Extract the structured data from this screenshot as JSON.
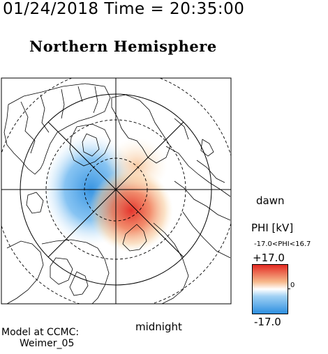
{
  "header": {
    "date_time": "01/24/2018 Time = 20:35:00",
    "hemisphere": "Northern Hemisphere"
  },
  "map": {
    "dawn_label": "dawn",
    "midnight_label": "midnight"
  },
  "colorbar": {
    "quantity_label": "PHI [kV]",
    "range_label": "-17.0<PHI<16.7",
    "max_label": "+17.0",
    "mid_label": "0",
    "min_label": "-17.0",
    "colors": {
      "high": "#e32a22",
      "mid": "#ffffff",
      "low": "#2e8fe0"
    }
  },
  "model": {
    "line1": "Model at CCMC:",
    "line2": "Weimer_05"
  }
}
